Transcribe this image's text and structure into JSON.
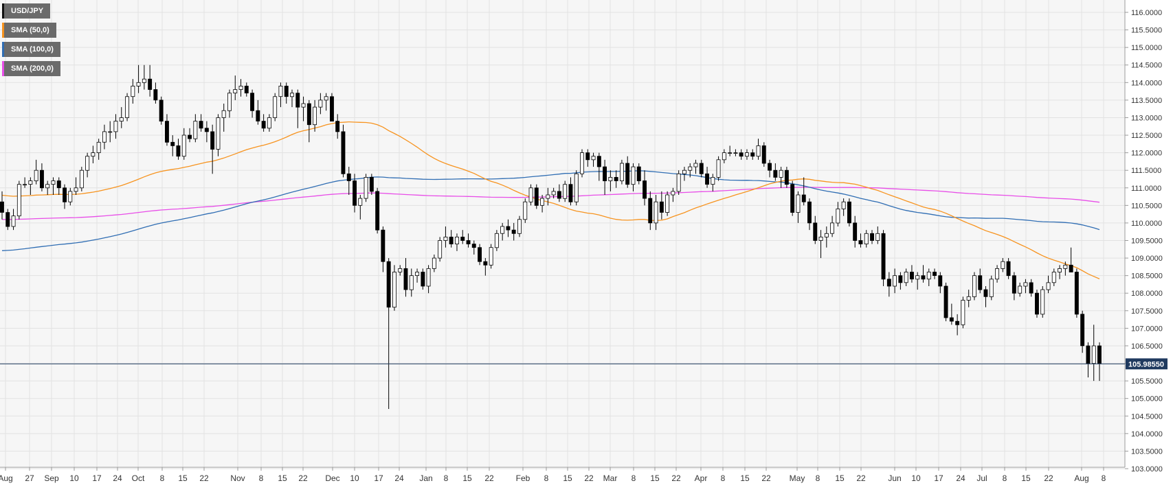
{
  "legend": [
    {
      "label": "USD/JPY",
      "color": "#111111"
    },
    {
      "label": "SMA (50,0)",
      "color": "#f7931e"
    },
    {
      "label": "SMA (100,0)",
      "color": "#2f6db3"
    },
    {
      "label": "SMA (200,0)",
      "color": "#e84de8"
    }
  ],
  "colors": {
    "background": "#f6f6f6",
    "grid": "#e2e2e2",
    "up_candle": "#ffffff",
    "down_candle": "#000000",
    "price_line": "#1f3a5f",
    "price_label_bg": "#1f3a5f"
  },
  "chart_data": {
    "type": "candlestick",
    "pair": "USD/JPY",
    "ylim": [
      103.0,
      116.2
    ],
    "y_ticks": [
      "116.0000",
      "115.5000",
      "115.0000",
      "114.5000",
      "114.0000",
      "113.5000",
      "113.0000",
      "112.5000",
      "112.0000",
      "111.5000",
      "111.0000",
      "110.5000",
      "110.0000",
      "109.5000",
      "109.0000",
      "108.5000",
      "108.0000",
      "107.5000",
      "107.0000",
      "106.5000",
      "106.0000",
      "105.5000",
      "105.0000",
      "104.5000",
      "104.0000",
      "103.5000",
      "103.0000"
    ],
    "x_ticks": [
      "Aug",
      "27",
      "Sep",
      "10",
      "17",
      "24",
      "Oct",
      "8",
      "15",
      "22",
      "Nov",
      "8",
      "15",
      "22",
      "Dec",
      "10",
      "17",
      "24",
      "Jan",
      "8",
      "15",
      "22",
      "Feb",
      "8",
      "15",
      "22",
      "Mar",
      "8",
      "15",
      "22",
      "Apr",
      "8",
      "15",
      "22",
      "May",
      "8",
      "15",
      "22",
      "Jun",
      "10",
      "17",
      "24",
      "Jul",
      "8",
      "15",
      "22",
      "Aug",
      "8"
    ],
    "current_price": "105.98550",
    "grid": true,
    "legend_position": "top-left",
    "bars": [
      [
        110.6,
        110.9,
        110.1,
        110.3
      ],
      [
        110.3,
        110.4,
        109.8,
        109.9
      ],
      [
        109.9,
        110.4,
        109.8,
        110.2
      ],
      [
        110.2,
        111.2,
        110.1,
        111.1
      ],
      [
        111.1,
        111.3,
        111.0,
        111.1
      ],
      [
        111.1,
        111.3,
        110.8,
        111.2
      ],
      [
        111.2,
        111.8,
        111.1,
        111.5
      ],
      [
        111.5,
        111.7,
        110.9,
        111.0
      ],
      [
        111.0,
        111.2,
        110.8,
        111.1
      ],
      [
        111.1,
        111.3,
        110.8,
        111.2
      ],
      [
        111.2,
        111.3,
        110.8,
        111.0
      ],
      [
        111.0,
        111.1,
        110.4,
        110.6
      ],
      [
        110.6,
        111.0,
        110.5,
        110.9
      ],
      [
        110.9,
        111.3,
        110.8,
        111.0
      ],
      [
        111.0,
        111.6,
        110.9,
        111.5
      ],
      [
        111.5,
        112.0,
        111.3,
        111.9
      ],
      [
        111.9,
        112.2,
        111.7,
        112.0
      ],
      [
        112.0,
        112.4,
        111.8,
        112.3
      ],
      [
        112.3,
        112.8,
        112.1,
        112.6
      ],
      [
        112.6,
        112.9,
        112.3,
        112.6
      ],
      [
        112.6,
        113.1,
        112.4,
        112.9
      ],
      [
        112.9,
        113.3,
        112.7,
        113.0
      ],
      [
        113.0,
        113.7,
        112.9,
        113.6
      ],
      [
        113.6,
        114.1,
        113.4,
        113.9
      ],
      [
        113.9,
        114.5,
        113.7,
        114.0
      ],
      [
        114.0,
        114.5,
        113.8,
        114.1
      ],
      [
        114.1,
        114.5,
        113.6,
        113.8
      ],
      [
        113.8,
        114.0,
        113.4,
        113.5
      ],
      [
        113.5,
        113.6,
        112.8,
        112.9
      ],
      [
        112.9,
        113.1,
        112.2,
        112.3
      ],
      [
        112.3,
        112.5,
        111.9,
        112.2
      ],
      [
        112.2,
        112.4,
        111.8,
        111.9
      ],
      [
        111.9,
        112.7,
        111.8,
        112.5
      ],
      [
        112.5,
        112.7,
        112.3,
        112.4
      ],
      [
        112.4,
        113.1,
        112.3,
        112.9
      ],
      [
        112.9,
        113.1,
        112.6,
        112.7
      ],
      [
        112.7,
        112.9,
        112.3,
        112.6
      ],
      [
        112.6,
        112.8,
        111.4,
        112.1
      ],
      [
        112.1,
        113.1,
        111.9,
        113.0
      ],
      [
        113.0,
        113.4,
        112.6,
        113.2
      ],
      [
        113.2,
        113.8,
        113.0,
        113.7
      ],
      [
        113.7,
        114.2,
        113.5,
        113.8
      ],
      [
        113.8,
        114.1,
        113.6,
        113.9
      ],
      [
        113.9,
        114.0,
        113.6,
        113.7
      ],
      [
        113.7,
        113.8,
        113.0,
        113.2
      ],
      [
        113.2,
        113.5,
        112.8,
        112.9
      ],
      [
        112.9,
        113.1,
        112.6,
        112.7
      ],
      [
        112.7,
        113.1,
        112.6,
        113.0
      ],
      [
        113.0,
        113.7,
        112.9,
        113.6
      ],
      [
        113.6,
        114.0,
        113.3,
        113.9
      ],
      [
        113.9,
        114.0,
        113.4,
        113.6
      ],
      [
        113.6,
        113.8,
        113.3,
        113.7
      ],
      [
        113.7,
        113.8,
        112.7,
        113.3
      ],
      [
        113.3,
        113.6,
        112.9,
        113.4
      ],
      [
        113.4,
        113.5,
        112.3,
        112.8
      ],
      [
        112.8,
        113.5,
        112.6,
        113.3
      ],
      [
        113.3,
        113.7,
        113.1,
        113.5
      ],
      [
        113.5,
        113.7,
        113.2,
        113.6
      ],
      [
        113.6,
        113.7,
        112.9,
        112.9
      ],
      [
        112.9,
        113.1,
        112.4,
        112.6
      ],
      [
        112.6,
        112.8,
        111.3,
        111.4
      ],
      [
        111.4,
        111.6,
        110.8,
        111.2
      ],
      [
        111.2,
        111.4,
        110.3,
        110.5
      ],
      [
        110.5,
        110.8,
        110.1,
        110.7
      ],
      [
        110.7,
        111.4,
        110.6,
        111.3
      ],
      [
        111.3,
        111.4,
        110.8,
        110.9
      ],
      [
        110.9,
        111.0,
        109.7,
        109.8
      ],
      [
        109.8,
        109.9,
        108.6,
        108.9
      ],
      [
        108.9,
        109.0,
        104.7,
        107.6
      ],
      [
        107.6,
        108.8,
        107.5,
        108.6
      ],
      [
        108.6,
        108.8,
        108.5,
        108.7
      ],
      [
        108.7,
        109.0,
        107.9,
        108.1
      ],
      [
        108.1,
        108.7,
        107.9,
        108.5
      ],
      [
        108.5,
        108.7,
        108.3,
        108.6
      ],
      [
        108.6,
        108.7,
        108.1,
        108.2
      ],
      [
        108.2,
        108.8,
        108.0,
        108.7
      ],
      [
        108.7,
        109.1,
        108.6,
        109.0
      ],
      [
        109.0,
        109.6,
        108.9,
        109.5
      ],
      [
        109.5,
        109.9,
        109.3,
        109.6
      ],
      [
        109.6,
        109.8,
        109.3,
        109.4
      ],
      [
        109.4,
        109.7,
        109.2,
        109.6
      ],
      [
        109.6,
        109.8,
        109.4,
        109.5
      ],
      [
        109.5,
        109.7,
        109.3,
        109.4
      ],
      [
        109.4,
        109.5,
        109.1,
        109.3
      ],
      [
        109.3,
        109.4,
        108.8,
        108.9
      ],
      [
        108.9,
        109.0,
        108.5,
        108.8
      ],
      [
        108.8,
        109.4,
        108.7,
        109.3
      ],
      [
        109.3,
        109.8,
        109.2,
        109.7
      ],
      [
        109.7,
        110.0,
        109.5,
        109.9
      ],
      [
        109.9,
        110.1,
        109.6,
        109.8
      ],
      [
        109.8,
        110.0,
        109.5,
        109.7
      ],
      [
        109.7,
        110.2,
        109.6,
        110.1
      ],
      [
        110.1,
        110.7,
        110.0,
        110.6
      ],
      [
        110.6,
        111.1,
        110.5,
        111.0
      ],
      [
        111.0,
        111.1,
        110.4,
        110.5
      ],
      [
        110.5,
        110.8,
        110.3,
        110.7
      ],
      [
        110.7,
        111.0,
        110.5,
        110.8
      ],
      [
        110.8,
        111.0,
        110.7,
        110.9
      ],
      [
        110.9,
        111.1,
        110.6,
        110.7
      ],
      [
        110.7,
        111.2,
        110.6,
        111.1
      ],
      [
        111.1,
        111.3,
        110.5,
        110.6
      ],
      [
        110.6,
        111.5,
        110.5,
        111.4
      ],
      [
        111.4,
        112.1,
        111.3,
        112.0
      ],
      [
        112.0,
        112.1,
        111.6,
        111.8
      ],
      [
        111.8,
        112.0,
        111.6,
        111.9
      ],
      [
        111.9,
        112.0,
        111.2,
        111.6
      ],
      [
        111.6,
        111.8,
        110.8,
        111.2
      ],
      [
        111.2,
        111.5,
        110.9,
        111.3
      ],
      [
        111.3,
        111.5,
        111.0,
        111.2
      ],
      [
        111.2,
        111.8,
        111.1,
        111.7
      ],
      [
        111.7,
        111.9,
        111.0,
        111.1
      ],
      [
        111.1,
        111.7,
        110.9,
        111.6
      ],
      [
        111.6,
        111.7,
        111.1,
        111.2
      ],
      [
        111.2,
        111.5,
        110.5,
        110.7
      ],
      [
        110.7,
        110.9,
        109.8,
        110.0
      ],
      [
        110.0,
        110.8,
        109.8,
        110.6
      ],
      [
        110.6,
        110.9,
        110.1,
        110.3
      ],
      [
        110.3,
        110.9,
        110.2,
        110.8
      ],
      [
        110.8,
        111.0,
        110.6,
        110.9
      ],
      [
        110.9,
        111.5,
        110.8,
        111.4
      ],
      [
        111.4,
        111.6,
        111.2,
        111.5
      ],
      [
        111.5,
        111.7,
        111.3,
        111.6
      ],
      [
        111.6,
        111.8,
        111.4,
        111.7
      ],
      [
        111.7,
        111.8,
        111.3,
        111.4
      ],
      [
        111.4,
        111.6,
        111.0,
        111.1
      ],
      [
        111.1,
        111.4,
        110.9,
        111.3
      ],
      [
        111.3,
        111.9,
        111.2,
        111.8
      ],
      [
        111.8,
        112.1,
        111.7,
        112.0
      ],
      [
        112.0,
        112.2,
        111.9,
        112.0
      ],
      [
        112.0,
        112.1,
        111.9,
        112.0
      ],
      [
        112.0,
        112.1,
        111.8,
        111.9
      ],
      [
        111.9,
        112.1,
        111.8,
        112.0
      ],
      [
        112.0,
        112.1,
        111.8,
        111.9
      ],
      [
        111.9,
        112.4,
        111.8,
        112.2
      ],
      [
        112.2,
        112.3,
        111.6,
        111.7
      ],
      [
        111.7,
        111.8,
        111.3,
        111.5
      ],
      [
        111.5,
        111.7,
        111.2,
        111.3
      ],
      [
        111.3,
        111.6,
        111.0,
        111.5
      ],
      [
        111.5,
        111.6,
        111.0,
        111.1
      ],
      [
        111.1,
        111.2,
        110.2,
        110.3
      ],
      [
        110.3,
        110.9,
        110.0,
        110.8
      ],
      [
        110.8,
        111.3,
        110.5,
        110.6
      ],
      [
        110.6,
        110.7,
        109.8,
        110.0
      ],
      [
        110.0,
        110.2,
        109.4,
        109.5
      ],
      [
        109.5,
        109.8,
        109.0,
        109.6
      ],
      [
        109.6,
        109.9,
        109.3,
        109.7
      ],
      [
        109.7,
        110.2,
        109.6,
        110.0
      ],
      [
        110.0,
        110.6,
        109.9,
        110.4
      ],
      [
        110.4,
        110.7,
        110.2,
        110.6
      ],
      [
        110.6,
        110.7,
        109.9,
        110.0
      ],
      [
        110.0,
        110.2,
        109.3,
        109.5
      ],
      [
        109.5,
        109.7,
        109.3,
        109.4
      ],
      [
        109.4,
        109.8,
        109.3,
        109.7
      ],
      [
        109.7,
        109.8,
        109.4,
        109.5
      ],
      [
        109.5,
        109.9,
        109.4,
        109.7
      ],
      [
        109.7,
        109.8,
        108.2,
        108.4
      ],
      [
        108.4,
        108.6,
        107.9,
        108.2
      ],
      [
        108.2,
        108.7,
        108.0,
        108.5
      ],
      [
        108.5,
        108.6,
        108.1,
        108.3
      ],
      [
        108.3,
        108.7,
        108.2,
        108.6
      ],
      [
        108.6,
        108.8,
        108.3,
        108.4
      ],
      [
        108.4,
        108.6,
        108.1,
        108.5
      ],
      [
        108.5,
        108.8,
        108.3,
        108.4
      ],
      [
        108.4,
        108.7,
        108.2,
        108.6
      ],
      [
        108.6,
        108.7,
        108.4,
        108.5
      ],
      [
        108.5,
        108.6,
        108.0,
        108.2
      ],
      [
        108.2,
        108.3,
        107.2,
        107.3
      ],
      [
        107.3,
        107.7,
        107.1,
        107.2
      ],
      [
        107.2,
        107.4,
        106.8,
        107.1
      ],
      [
        107.1,
        107.9,
        107.0,
        107.8
      ],
      [
        107.8,
        108.1,
        107.6,
        107.9
      ],
      [
        107.9,
        108.6,
        107.8,
        108.5
      ],
      [
        108.5,
        108.7,
        108.0,
        108.1
      ],
      [
        108.1,
        108.2,
        107.6,
        107.9
      ],
      [
        107.9,
        108.5,
        107.8,
        108.4
      ],
      [
        108.4,
        108.8,
        108.3,
        108.7
      ],
      [
        108.7,
        109.0,
        108.6,
        108.9
      ],
      [
        108.9,
        109.0,
        108.4,
        108.5
      ],
      [
        108.5,
        108.6,
        107.8,
        108.0
      ],
      [
        108.0,
        108.3,
        107.9,
        108.2
      ],
      [
        108.2,
        108.4,
        108.0,
        108.3
      ],
      [
        108.3,
        108.4,
        107.9,
        108.0
      ],
      [
        108.0,
        108.1,
        107.3,
        107.4
      ],
      [
        107.4,
        108.2,
        107.3,
        108.1
      ],
      [
        108.1,
        108.5,
        108.0,
        108.3
      ],
      [
        108.3,
        108.7,
        108.2,
        108.6
      ],
      [
        108.6,
        108.8,
        108.4,
        108.7
      ],
      [
        108.7,
        108.9,
        108.5,
        108.8
      ],
      [
        108.8,
        109.3,
        108.6,
        108.6
      ],
      [
        108.6,
        108.7,
        107.3,
        107.4
      ],
      [
        107.4,
        107.5,
        106.3,
        106.5
      ],
      [
        106.5,
        106.6,
        105.6,
        106.0
      ],
      [
        106.0,
        107.1,
        105.5,
        106.5
      ],
      [
        106.5,
        106.6,
        105.5,
        105.99
      ]
    ]
  }
}
